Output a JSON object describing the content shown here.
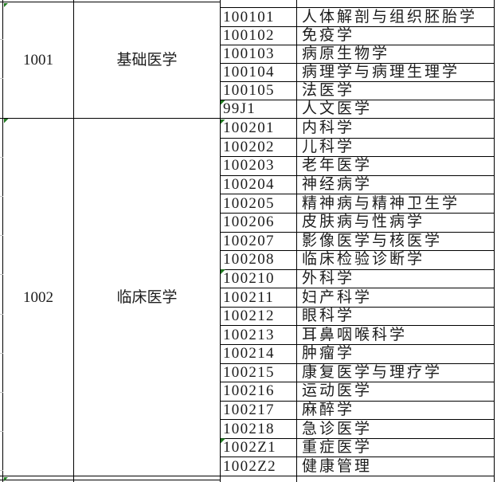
{
  "table": {
    "sections": [
      {
        "code": "1001",
        "name": "基础医学",
        "marker": true,
        "rows": [
          {
            "code": "100101",
            "name": "人体解剖与组织胚胎学"
          },
          {
            "code": "100102",
            "name": "免疫学"
          },
          {
            "code": "100103",
            "name": "病原生物学"
          },
          {
            "code": "100104",
            "name": "病理学与病理生理学"
          },
          {
            "code": "100105",
            "name": "法医学"
          },
          {
            "code": "99J1",
            "name": "人文医学",
            "marker": true
          }
        ]
      },
      {
        "code": "1002",
        "name": "临床医学",
        "marker": true,
        "rows": [
          {
            "code": "100201",
            "name": "内科学",
            "marker": true
          },
          {
            "code": "100202",
            "name": "儿科学"
          },
          {
            "code": "100203",
            "name": "老年医学"
          },
          {
            "code": "100204",
            "name": "神经病学"
          },
          {
            "code": "100205",
            "name": "精神病与精神卫生学"
          },
          {
            "code": "100206",
            "name": "皮肤病与性病学"
          },
          {
            "code": "100207",
            "name": "影像医学与核医学"
          },
          {
            "code": "100208",
            "name": "临床检验诊断学"
          },
          {
            "code": "100210",
            "name": "外科学",
            "marker": true
          },
          {
            "code": "100211",
            "name": "妇产科学"
          },
          {
            "code": "100212",
            "name": "眼科学"
          },
          {
            "code": "100213",
            "name": "耳鼻咽喉科学"
          },
          {
            "code": "100214",
            "name": "肿瘤学"
          },
          {
            "code": "100215",
            "name": "康复医学与理疗学"
          },
          {
            "code": "100216",
            "name": "运动医学"
          },
          {
            "code": "100217",
            "name": "麻醉学"
          },
          {
            "code": "100218",
            "name": "急诊医学"
          },
          {
            "code": "1002Z1",
            "name": "重症医学",
            "marker": true
          },
          {
            "code": "1002Z2",
            "name": "健康管理"
          }
        ]
      }
    ],
    "bottom_partial_marker": true,
    "colors": {
      "border": "#000000",
      "text": "#1c1c1c",
      "error_marker_green": "#1f7a1f",
      "gridline_gray": "#c6c6c6"
    }
  }
}
